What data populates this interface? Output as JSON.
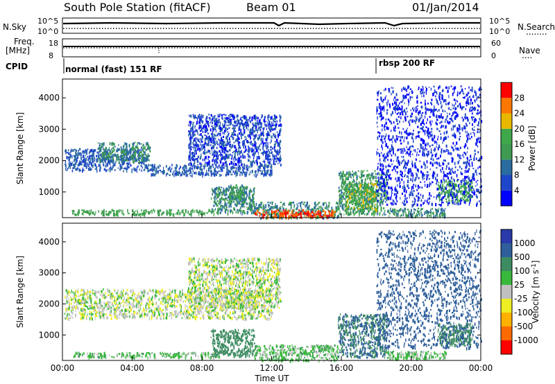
{
  "header": {
    "station": "South Pole Station (fitACF)",
    "beam": "Beam 01",
    "date": "01/Jan/2014"
  },
  "params_panel": {
    "nsky_label": "N.Sky",
    "nsearch_label": "N.Search",
    "freq_label_line1": "Freq.",
    "freq_label_line2": "[MHz]",
    "nave_label": "Nave",
    "cpid_label": "CPID",
    "noise_ticks": [
      "10^5",
      "10^0"
    ],
    "freq_ticks": [
      "18",
      "8"
    ],
    "nave_ticks": [
      "60",
      "0"
    ],
    "nsearch_dots": "........",
    "nave_dots": "....",
    "cpid_segments": [
      {
        "label": "normal (fast) 151 RF",
        "start_hour": 0
      },
      {
        "label": "rbsp 200 RF",
        "start_hour": 18
      }
    ]
  },
  "colors": {
    "power_scale": [
      "#0000ff",
      "#1e46c8",
      "#2a6ba0",
      "#3e9a52",
      "#3fa84a",
      "#e8b800",
      "#ff7700",
      "#ff0000"
    ],
    "velocity_scale": [
      "#2a3aaa",
      "#2e5f9a",
      "#3e8c62",
      "#38b83c",
      "#c0c0c0",
      "#eeee22",
      "#ffb000",
      "#ff6a00",
      "#ff0000"
    ],
    "velocity_ground": "#c0c0c0"
  },
  "chart_data": [
    {
      "type": "heatmap",
      "name": "power",
      "ylabel": "Slant Range [km]",
      "xlim_hours": [
        0,
        24
      ],
      "ylim": [
        180,
        4600
      ],
      "y_ticks": [
        1000,
        2000,
        3000,
        4000
      ],
      "colorbar": {
        "label": "Power [dB]",
        "range": [
          0,
          32
        ],
        "ticks": [
          "4",
          "8",
          "12",
          "16",
          "20",
          "24",
          "28"
        ]
      },
      "regions": [
        {
          "t0": 0.1,
          "t1": 4.8,
          "r0": 1700,
          "r1": 2400,
          "level": 8
        },
        {
          "t0": 2.0,
          "t1": 5.0,
          "r0": 2000,
          "r1": 2600,
          "level": 12
        },
        {
          "t0": 4.8,
          "t1": 12.0,
          "r0": 1550,
          "r1": 1900,
          "level": 8
        },
        {
          "t0": 7.2,
          "t1": 12.5,
          "r0": 1900,
          "r1": 3500,
          "level": 6
        },
        {
          "t0": 0.5,
          "t1": 9.0,
          "r0": 300,
          "r1": 460,
          "level": 16
        },
        {
          "t0": 8.5,
          "t1": 11.0,
          "r0": 350,
          "r1": 1200,
          "level": 12
        },
        {
          "t0": 9.5,
          "t1": 10.4,
          "r0": 700,
          "r1": 1250,
          "level": 14
        },
        {
          "t0": 11.0,
          "t1": 15.8,
          "r0": 200,
          "r1": 700,
          "level": 12
        },
        {
          "t0": 11.0,
          "t1": 15.6,
          "r0": 200,
          "r1": 450,
          "level": 28
        },
        {
          "t0": 15.8,
          "t1": 18.6,
          "r0": 300,
          "r1": 1700,
          "level": 14
        },
        {
          "t0": 16.2,
          "t1": 18.0,
          "r0": 400,
          "r1": 1300,
          "level": 18
        },
        {
          "t0": 18.6,
          "t1": 22.0,
          "r0": 250,
          "r1": 500,
          "level": 12
        },
        {
          "t0": 21.5,
          "t1": 23.5,
          "r0": 700,
          "r1": 1400,
          "level": 16
        },
        {
          "t0": 18.0,
          "t1": 24.0,
          "r0": 600,
          "r1": 4400,
          "level": 4
        }
      ]
    },
    {
      "type": "heatmap",
      "name": "velocity",
      "ylabel": "Slant Range [km]",
      "xlabel": "Time UT",
      "xlim_hours": [
        0,
        24
      ],
      "x_ticks": [
        "00:00",
        "04:00",
        "08:00",
        "12:00",
        "16:00",
        "20:00",
        "00:00"
      ],
      "ylim": [
        180,
        4600
      ],
      "y_ticks": [
        1000,
        2000,
        3000,
        4000
      ],
      "colorbar": {
        "label": "Velocity [m s^-1]",
        "ticks": [
          "1000",
          "500",
          "100",
          "25",
          "-25",
          "-100",
          "-500",
          "-1000"
        ]
      },
      "regions": [
        {
          "t0": 0.1,
          "t1": 12.0,
          "r0": 1550,
          "r1": 2500,
          "level": 0
        },
        {
          "t0": 7.2,
          "t1": 12.5,
          "r0": 1900,
          "r1": 3500,
          "level": 0
        },
        {
          "t0": 0.5,
          "t1": 9.0,
          "r0": 300,
          "r1": 460,
          "level": 60
        },
        {
          "t0": 8.5,
          "t1": 11.0,
          "r0": 350,
          "r1": 1200,
          "level": 300
        },
        {
          "t0": 11.0,
          "t1": 15.8,
          "r0": 200,
          "r1": 700,
          "level": 60
        },
        {
          "t0": 15.8,
          "t1": 18.6,
          "r0": 300,
          "r1": 1700,
          "level": 500
        },
        {
          "t0": 18.6,
          "t1": 22.0,
          "r0": 250,
          "r1": 500,
          "level": 60
        },
        {
          "t0": 21.5,
          "t1": 23.5,
          "r0": 700,
          "r1": 1400,
          "level": 300
        },
        {
          "t0": 18.0,
          "t1": 24.0,
          "r0": 600,
          "r1": 4400,
          "level": 700
        }
      ]
    }
  ]
}
